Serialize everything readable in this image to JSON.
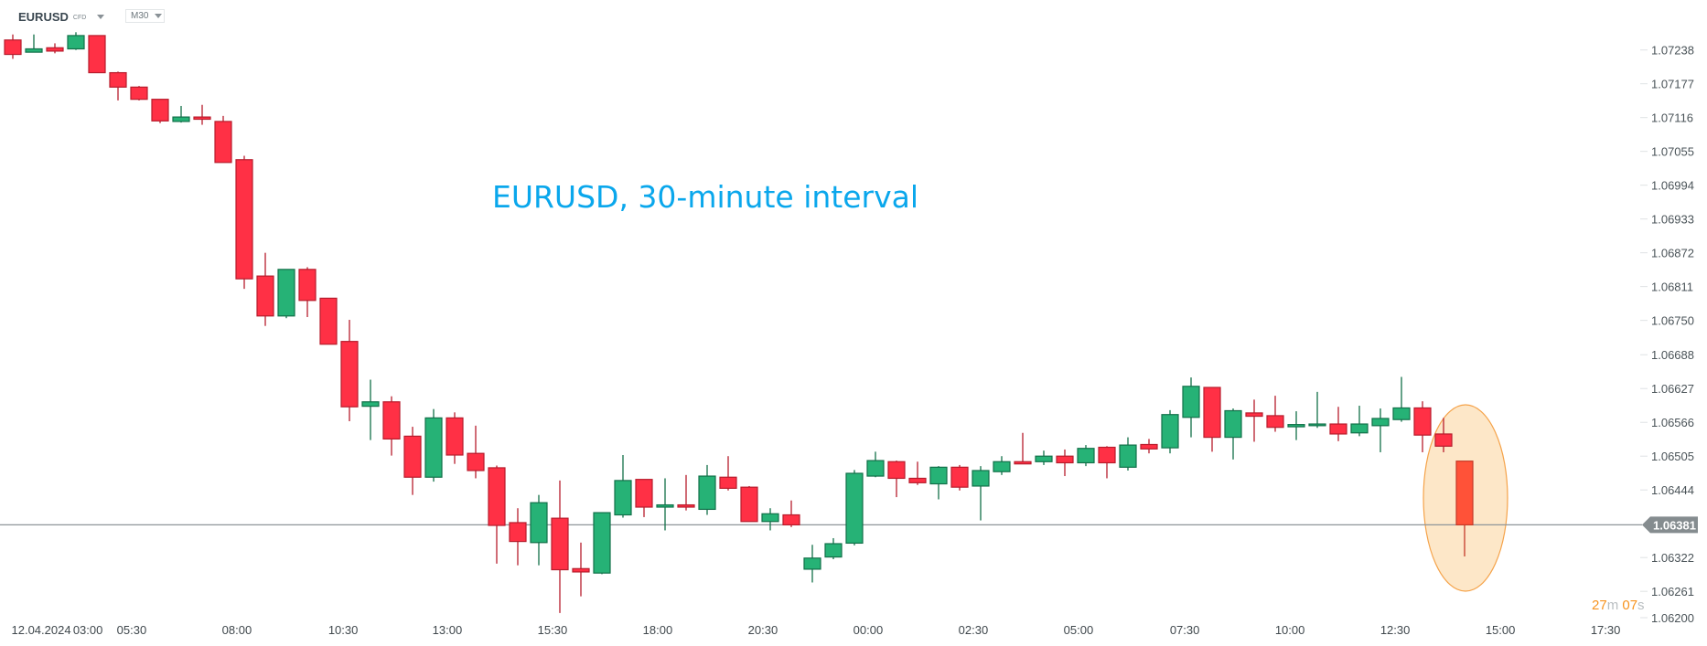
{
  "header": {
    "symbol": "EURUSD",
    "instrument_type": "CFD",
    "timeframe": "M30"
  },
  "annotation": {
    "title": "EURUSD, 30-minute interval",
    "highlight_color": "#fde7c8",
    "highlight_stroke": "#f5a34a"
  },
  "countdown": {
    "minutes": "27",
    "minutes_unit": "m",
    "seconds": "07",
    "seconds_unit": "s"
  },
  "chart_data": {
    "type": "candlestick",
    "title": "",
    "interval": "M30",
    "colors": {
      "up": "#26b276",
      "up_border": "#127049",
      "down": "#ff3045",
      "down_border": "#b71c2c",
      "current": "#ff5238",
      "current_border": "#c43a28",
      "price_line": "#8e9599"
    },
    "ylim": [
      1.062,
      1.07238
    ],
    "y_ticks": [
      "1.07238",
      "1.07177",
      "1.07116",
      "1.07055",
      "1.06994",
      "1.06933",
      "1.06872",
      "1.06811",
      "1.06750",
      "1.06688",
      "1.06627",
      "1.06566",
      "1.06505",
      "1.06444",
      "1.06322",
      "1.06261",
      "1.06200"
    ],
    "current_price": "1.06381",
    "x_ticks": [
      {
        "label": "12.04.2024",
        "bar": 1.35
      },
      {
        "label": "03:00",
        "bar": 3.57
      },
      {
        "label": "05:30",
        "bar": 5.65
      },
      {
        "label": "08:00",
        "bar": 10.65
      },
      {
        "label": "10:30",
        "bar": 15.7
      },
      {
        "label": "13:00",
        "bar": 20.65
      },
      {
        "label": "15:30",
        "bar": 25.65
      },
      {
        "label": "18:00",
        "bar": 30.65
      },
      {
        "label": "20:30",
        "bar": 35.65
      },
      {
        "label": "00:00",
        "bar": 40.65
      },
      {
        "label": "02:30",
        "bar": 45.65
      },
      {
        "label": "05:00",
        "bar": 50.65
      },
      {
        "label": "07:30",
        "bar": 55.7
      },
      {
        "label": "10:00",
        "bar": 60.7
      },
      {
        "label": "12:30",
        "bar": 65.7
      },
      {
        "label": "15:00",
        "bar": 70.7
      },
      {
        "label": "17:30",
        "bar": 75.7
      }
    ],
    "ohlc": [
      [
        1.07256,
        1.07266,
        1.07222,
        1.0723
      ],
      [
        1.07234,
        1.07266,
        1.07234,
        1.0724
      ],
      [
        1.07242,
        1.0725,
        1.07232,
        1.07236
      ],
      [
        1.0724,
        1.0727,
        1.07238,
        1.07264
      ],
      [
        1.07264,
        1.07264,
        1.07197,
        1.07197
      ],
      [
        1.07197,
        1.07199,
        1.07147,
        1.07171
      ],
      [
        1.07171,
        1.07173,
        1.07147,
        1.07149
      ],
      [
        1.07149,
        1.07149,
        1.07106,
        1.0711
      ],
      [
        1.07109,
        1.07137,
        1.07107,
        1.07117
      ],
      [
        1.07117,
        1.07139,
        1.07103,
        1.07113
      ],
      [
        1.07109,
        1.07119,
        1.07035,
        1.07035
      ],
      [
        1.0704,
        1.07047,
        1.06807,
        1.06825
      ],
      [
        1.0683,
        1.06872,
        1.0674,
        1.06758
      ],
      [
        1.06758,
        1.06842,
        1.06754,
        1.06842
      ],
      [
        1.06842,
        1.06846,
        1.06756,
        1.06786
      ],
      [
        1.0679,
        1.0679,
        1.06707,
        1.06707
      ],
      [
        1.06712,
        1.06751,
        1.06568,
        1.06594
      ],
      [
        1.06595,
        1.06643,
        1.06534,
        1.06603
      ],
      [
        1.06603,
        1.06613,
        1.06506,
        1.06536
      ],
      [
        1.06541,
        1.06558,
        1.06435,
        1.06467
      ],
      [
        1.06467,
        1.0659,
        1.06459,
        1.06574
      ],
      [
        1.06574,
        1.06584,
        1.06491,
        1.06507
      ],
      [
        1.0651,
        1.0656,
        1.06465,
        1.06479
      ],
      [
        1.06484,
        1.06488,
        1.06311,
        1.0638
      ],
      [
        1.06385,
        1.06411,
        1.06308,
        1.06351
      ],
      [
        1.06349,
        1.06435,
        1.06308,
        1.06421
      ],
      [
        1.06393,
        1.06461,
        1.06222,
        1.063
      ],
      [
        1.06302,
        1.06349,
        1.06252,
        1.06296
      ],
      [
        1.06294,
        1.06403,
        1.06292,
        1.06403
      ],
      [
        1.06399,
        1.06507,
        1.06394,
        1.06461
      ],
      [
        1.06463,
        1.06463,
        1.06395,
        1.06413
      ],
      [
        1.06413,
        1.06465,
        1.06371,
        1.06417
      ],
      [
        1.06417,
        1.06471,
        1.06407,
        1.06413
      ],
      [
        1.06409,
        1.06489,
        1.06399,
        1.06469
      ],
      [
        1.06467,
        1.06505,
        1.06443,
        1.06447
      ],
      [
        1.06449,
        1.06451,
        1.06387,
        1.06387
      ],
      [
        1.06387,
        1.06411,
        1.06371,
        1.06401
      ],
      [
        1.06399,
        1.06425,
        1.06377,
        1.06381
      ],
      [
        1.06301,
        1.06345,
        1.06277,
        1.06321
      ],
      [
        1.06323,
        1.06357,
        1.06319,
        1.06347
      ],
      [
        1.06348,
        1.0648,
        1.06344,
        1.06474
      ],
      [
        1.06469,
        1.06513,
        1.06467,
        1.06497
      ],
      [
        1.06495,
        1.06497,
        1.06431,
        1.06465
      ],
      [
        1.06465,
        1.06495,
        1.06453,
        1.06457
      ],
      [
        1.06455,
        1.06487,
        1.06427,
        1.06485
      ],
      [
        1.06485,
        1.06489,
        1.06443,
        1.06449
      ],
      [
        1.06451,
        1.06487,
        1.06389,
        1.06479
      ],
      [
        1.06477,
        1.06505,
        1.06471,
        1.06495
      ],
      [
        1.06495,
        1.06547,
        1.06491,
        1.06491
      ],
      [
        1.06495,
        1.06515,
        1.06489,
        1.06505
      ],
      [
        1.06505,
        1.06517,
        1.06469,
        1.06493
      ],
      [
        1.06493,
        1.06525,
        1.06487,
        1.06519
      ],
      [
        1.06521,
        1.06523,
        1.06465,
        1.06493
      ],
      [
        1.06485,
        1.06539,
        1.06479,
        1.06525
      ],
      [
        1.06526,
        1.06536,
        1.0651,
        1.06518
      ],
      [
        1.0652,
        1.06588,
        1.0651,
        1.0658
      ],
      [
        1.06575,
        1.06647,
        1.06539,
        1.06631
      ],
      [
        1.06629,
        1.06629,
        1.06513,
        1.06539
      ],
      [
        1.06539,
        1.06591,
        1.06499,
        1.06587
      ],
      [
        1.06583,
        1.06607,
        1.06531,
        1.06577
      ],
      [
        1.06578,
        1.06614,
        1.06549,
        1.06557
      ],
      [
        1.06558,
        1.06586,
        1.06534,
        1.06562
      ],
      [
        1.0656,
        1.06621,
        1.06556,
        1.06563
      ],
      [
        1.06563,
        1.06594,
        1.06532,
        1.06545
      ],
      [
        1.06547,
        1.06596,
        1.06541,
        1.06563
      ],
      [
        1.0656,
        1.06591,
        1.06512,
        1.06573
      ],
      [
        1.06571,
        1.06648,
        1.06567,
        1.06592
      ],
      [
        1.06592,
        1.06604,
        1.06512,
        1.06543
      ],
      [
        1.06545,
        1.06574,
        1.06512,
        1.06523
      ],
      [
        1.06496,
        1.06496,
        1.06324,
        1.06381
      ]
    ]
  }
}
